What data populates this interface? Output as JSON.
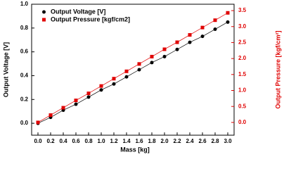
{
  "chart_data": {
    "type": "scatter-line",
    "x_label": "Mass [kg]",
    "y_label": "Output Voltage [V]",
    "y2_label": "Output Pressure [kgf/cm²]",
    "x": [
      0.0,
      0.2,
      0.4,
      0.6,
      0.8,
      1.0,
      1.2,
      1.4,
      1.6,
      1.8,
      2.0,
      2.2,
      2.4,
      2.6,
      2.8,
      3.0
    ],
    "series": [
      {
        "name": "Output Voltage [V]",
        "color": "#000000",
        "marker": "circle",
        "axis": "y",
        "values": [
          0.0,
          0.05,
          0.11,
          0.16,
          0.22,
          0.28,
          0.33,
          0.39,
          0.45,
          0.51,
          0.56,
          0.62,
          0.68,
          0.73,
          0.79,
          0.85
        ]
      },
      {
        "name": "Output Pressure [kgf/cm2]",
        "color": "#e00000",
        "marker": "square",
        "axis": "y2",
        "values": [
          0.0,
          0.23,
          0.46,
          0.69,
          0.91,
          1.14,
          1.37,
          1.6,
          1.83,
          2.06,
          2.29,
          2.51,
          2.74,
          2.97,
          3.2,
          3.43
        ]
      }
    ],
    "xlim": [
      -0.1,
      3.1
    ],
    "ylim": [
      -0.1,
      1.0
    ],
    "y2lim": [
      -0.4,
      3.7
    ],
    "xticks": [
      {
        "value": 0,
        "label": "0.0"
      },
      {
        "value": 0.2,
        "label": "0.2"
      },
      {
        "value": 0.4,
        "label": "0.4"
      },
      {
        "value": 0.6,
        "label": "0.6"
      },
      {
        "value": 0.8,
        "label": "0.8"
      },
      {
        "value": 1,
        "label": "1.0"
      },
      {
        "value": 1.2,
        "label": "1.2"
      },
      {
        "value": 1.4,
        "label": "1.4"
      },
      {
        "value": 1.6,
        "label": "1.6"
      },
      {
        "value": 1.8,
        "label": "1.8"
      },
      {
        "value": 2,
        "label": "2.0"
      },
      {
        "value": 2.2,
        "label": "2.2"
      },
      {
        "value": 2.4,
        "label": "2.4"
      },
      {
        "value": 2.6,
        "label": "2.6"
      },
      {
        "value": 2.8,
        "label": "2.8"
      },
      {
        "value": 3,
        "label": "3.0"
      }
    ],
    "yticks": [
      {
        "value": 0,
        "label": "0.0"
      },
      {
        "value": 0.2,
        "label": "0.2"
      },
      {
        "value": 0.4,
        "label": "0.4"
      },
      {
        "value": 0.6,
        "label": "0.6"
      },
      {
        "value": 0.8,
        "label": "0.8"
      },
      {
        "value": 1,
        "label": "1.0"
      }
    ],
    "y2ticks": [
      {
        "value": 0,
        "label": "0.0"
      },
      0.5,
      {
        "value": 1,
        "label": "1.0"
      },
      1.5,
      {
        "value": 2,
        "label": "2.0"
      },
      2.5,
      {
        "value": 3,
        "label": "3.0"
      },
      3.5
    ],
    "legend": "upper-left"
  }
}
